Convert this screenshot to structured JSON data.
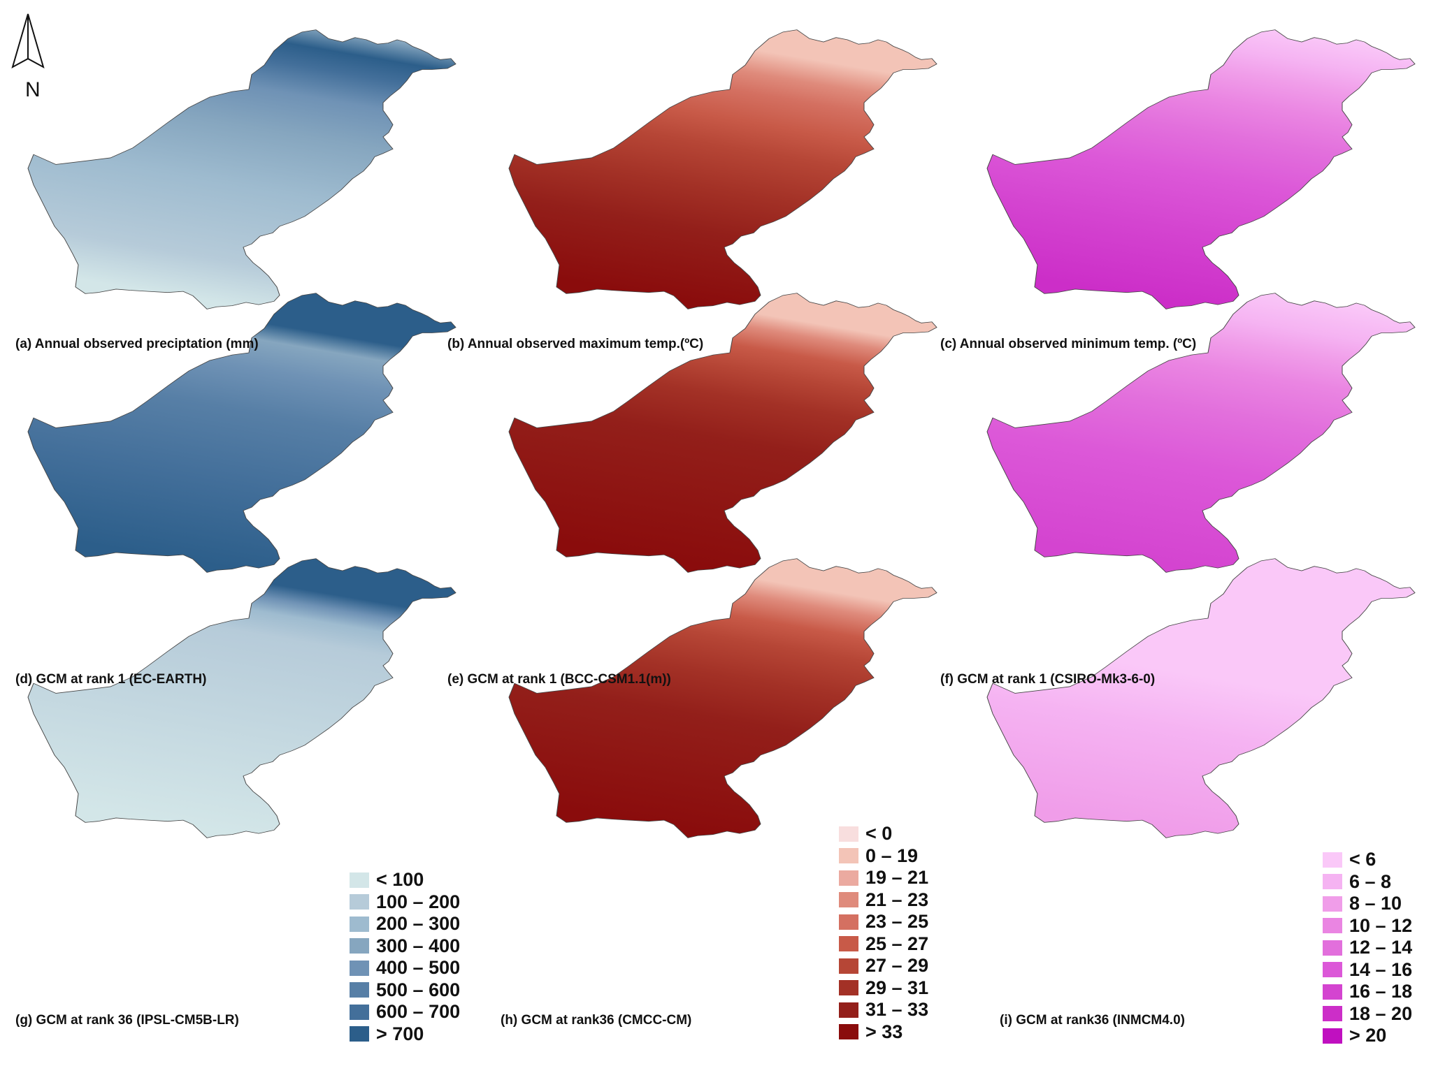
{
  "north_label": "N",
  "legends": [
    {
      "id": "precip",
      "classes": [
        {
          "label": "< 100",
          "color": "#d3e6e8"
        },
        {
          "label": "100 – 200",
          "color": "#b6cbd9"
        },
        {
          "label": "200 – 300",
          "color": "#9ebbcf"
        },
        {
          "label": "300 – 400",
          "color": "#86a6bf"
        },
        {
          "label": "400 – 500",
          "color": "#6f92b5"
        },
        {
          "label": "500 – 600",
          "color": "#577fa6"
        },
        {
          "label": "600 – 700",
          "color": "#436f9a"
        },
        {
          "label": "> 700",
          "color": "#2c5e8a"
        }
      ]
    },
    {
      "id": "tmax",
      "classes": [
        {
          "label": "< 0",
          "color": "#f8dede"
        },
        {
          "label": "0 – 19",
          "color": "#f3c4b7"
        },
        {
          "label": "19 – 21",
          "color": "#ebaaa0"
        },
        {
          "label": "21 – 23",
          "color": "#df8b7c"
        },
        {
          "label": "23 – 25",
          "color": "#d47061"
        },
        {
          "label": "25 – 27",
          "color": "#c85a48"
        },
        {
          "label": "27 – 29",
          "color": "#b64636"
        },
        {
          "label": "29 – 31",
          "color": "#a33126"
        },
        {
          "label": "31 – 33",
          "color": "#931f1a"
        },
        {
          "label": "> 33",
          "color": "#8a0c0c"
        }
      ]
    },
    {
      "id": "tmin",
      "classes": [
        {
          "label": "< 6",
          "color": "#fac8f8"
        },
        {
          "label": "6 – 8",
          "color": "#f5b3f2"
        },
        {
          "label": "8 – 10",
          "color": "#f09de9"
        },
        {
          "label": "10 – 12",
          "color": "#ea85e2"
        },
        {
          "label": "12 – 14",
          "color": "#e26fdc"
        },
        {
          "label": "14 – 16",
          "color": "#dc58d8"
        },
        {
          "label": "16 – 18",
          "color": "#d444d0"
        },
        {
          "label": "18 – 20",
          "color": "#cc2ec8"
        },
        {
          "label": "> 20",
          "color": "#c010c0"
        }
      ]
    }
  ],
  "panels": [
    {
      "id": "a",
      "caption": "(a) Annual observed preciptation (mm)",
      "legend": "precip",
      "bands": [
        [
          0.0,
          "#d3e6e8"
        ],
        [
          0.15,
          "#b6cbd9"
        ],
        [
          0.42,
          "#9ebbcf"
        ],
        [
          0.62,
          "#86a6bf"
        ],
        [
          0.76,
          "#6f92b5"
        ],
        [
          0.86,
          "#436f9a"
        ],
        [
          0.93,
          "#2c5e8a"
        ],
        [
          1.0,
          "#86a6bf"
        ]
      ]
    },
    {
      "id": "b",
      "caption": "(b) Annual observed maximum temp.(ºC)",
      "legend": "tmax",
      "bands": [
        [
          0.0,
          "#8a0c0c"
        ],
        [
          0.25,
          "#931f1a"
        ],
        [
          0.4,
          "#a33126"
        ],
        [
          0.55,
          "#b64636"
        ],
        [
          0.65,
          "#c85a48"
        ],
        [
          0.75,
          "#d47061"
        ],
        [
          0.82,
          "#df8b7c"
        ],
        [
          0.9,
          "#f3c4b7"
        ],
        [
          1.0,
          "#f3c4b7"
        ]
      ]
    },
    {
      "id": "c",
      "caption": "(c) Annual  observed  minimum  temp. (ºC)",
      "legend": "tmin",
      "bands": [
        [
          0.0,
          "#cc2ec8"
        ],
        [
          0.25,
          "#d444d0"
        ],
        [
          0.45,
          "#dc58d8"
        ],
        [
          0.6,
          "#e26fdc"
        ],
        [
          0.72,
          "#ea85e2"
        ],
        [
          0.82,
          "#f09de9"
        ],
        [
          0.9,
          "#f5b3f2"
        ],
        [
          1.0,
          "#fac8f8"
        ]
      ]
    },
    {
      "id": "d",
      "caption": "(d) GCM at rank 1 (EC-EARTH)",
      "legend": "precip",
      "bands": [
        [
          0.0,
          "#2c5e8a"
        ],
        [
          0.3,
          "#436f9a"
        ],
        [
          0.55,
          "#577fa6"
        ],
        [
          0.7,
          "#6f92b5"
        ],
        [
          0.8,
          "#86a6bf"
        ],
        [
          0.86,
          "#2c5e8a"
        ],
        [
          1.0,
          "#2c5e8a"
        ]
      ]
    },
    {
      "id": "e",
      "caption": "(e) GCM at rank 1 (BCC-CSM1.1(m))",
      "legend": "tmax",
      "bands": [
        [
          0.0,
          "#8a0c0c"
        ],
        [
          0.45,
          "#931f1a"
        ],
        [
          0.6,
          "#a33126"
        ],
        [
          0.7,
          "#b64636"
        ],
        [
          0.78,
          "#c85a48"
        ],
        [
          0.85,
          "#df8b7c"
        ],
        [
          0.9,
          "#f3c4b7"
        ],
        [
          1.0,
          "#f3c4b7"
        ]
      ]
    },
    {
      "id": "f",
      "caption": "(f) GCM at rank 1 (CSIRO-Mk3-6-0)",
      "legend": "tmin",
      "bands": [
        [
          0.0,
          "#d444d0"
        ],
        [
          0.35,
          "#dc58d8"
        ],
        [
          0.55,
          "#e26fdc"
        ],
        [
          0.7,
          "#ea85e2"
        ],
        [
          0.8,
          "#f09de9"
        ],
        [
          0.88,
          "#f5b3f2"
        ],
        [
          1.0,
          "#fac8f8"
        ]
      ]
    },
    {
      "id": "g",
      "caption": "(g) GCM at rank 36 (IPSL-CM5B-LR)",
      "legend": "precip",
      "bands": [
        [
          0.0,
          "#d3e6e8"
        ],
        [
          0.7,
          "#b6cbd9"
        ],
        [
          0.78,
          "#9ebbcf"
        ],
        [
          0.83,
          "#6f92b5"
        ],
        [
          0.88,
          "#2c5e8a"
        ],
        [
          1.0,
          "#2c5e8a"
        ]
      ]
    },
    {
      "id": "h",
      "caption": "(h) GCM at rank36 (CMCC-CM)",
      "legend": "tmax",
      "bands": [
        [
          0.0,
          "#8a0c0c"
        ],
        [
          0.4,
          "#931f1a"
        ],
        [
          0.55,
          "#a33126"
        ],
        [
          0.68,
          "#b64636"
        ],
        [
          0.76,
          "#c85a48"
        ],
        [
          0.84,
          "#df8b7c"
        ],
        [
          0.9,
          "#f3c4b7"
        ],
        [
          1.0,
          "#f3c4b7"
        ]
      ]
    },
    {
      "id": "i",
      "caption": "(i) GCM at rank36 (INMCM4.0)",
      "legend": "tmin",
      "bands": [
        [
          0.0,
          "#f09de9"
        ],
        [
          0.35,
          "#f5b3f2"
        ],
        [
          0.55,
          "#fac8f8"
        ],
        [
          1.0,
          "#fac8f8"
        ]
      ]
    }
  ]
}
